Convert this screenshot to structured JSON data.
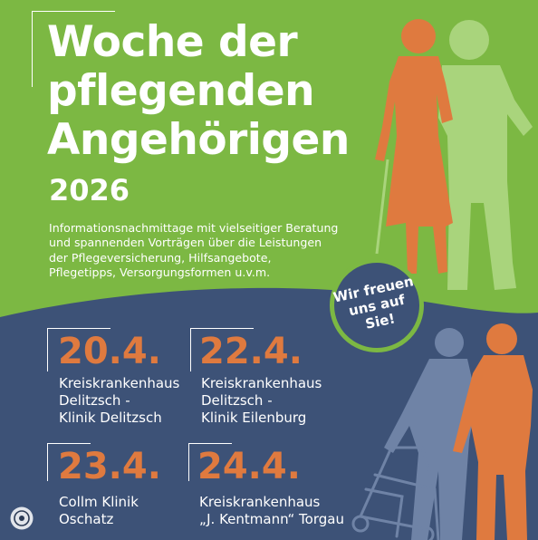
{
  "title": {
    "line1": "Woche der",
    "line2": "pflegenden",
    "line3": "Angehörigen"
  },
  "year": "2026",
  "subtitle": {
    "lines": [
      "Informationsnachmittage mit vielseitiger Beratung",
      "und spannenden Vorträgen über die Leistungen",
      "der Pflegeversicherung, Hilfsangebote,",
      "Pflegetipps, Versorgungsformen u.v.m."
    ]
  },
  "badge": {
    "line1": "Wir freuen",
    "line2": "uns auf",
    "line3": "Sie!"
  },
  "events": [
    {
      "date": "20.4.",
      "venue": [
        "Kreiskrankenhaus",
        "Delitzsch -",
        "Klinik Delitzsch"
      ]
    },
    {
      "date": "22.4.",
      "venue": [
        "Kreiskrankenhaus",
        "Delitzsch -",
        "Klinik Eilenburg"
      ]
    },
    {
      "date": "23.4.",
      "venue": [
        "Collm Klinik",
        "Oschatz"
      ]
    },
    {
      "date": "24.4.",
      "venue": [
        "Kreiskrankenhaus",
        "„J. Kentmann“ Torgau"
      ]
    }
  ],
  "colors": {
    "green": "#7cb843",
    "navy": "#3d5277",
    "orange": "#df7a3f",
    "light_green": "#a9d47c",
    "slate": "#6f83a6",
    "white": "#ffffff"
  },
  "icons": {
    "profile": "instagram-profile-icon",
    "caregiver_top": "caregiver-with-cane-silhouette",
    "person_top": "person-silhouette",
    "caregiver_bottom": "caregiver-silhouette",
    "elder_bottom": "elder-with-walker-silhouette"
  }
}
